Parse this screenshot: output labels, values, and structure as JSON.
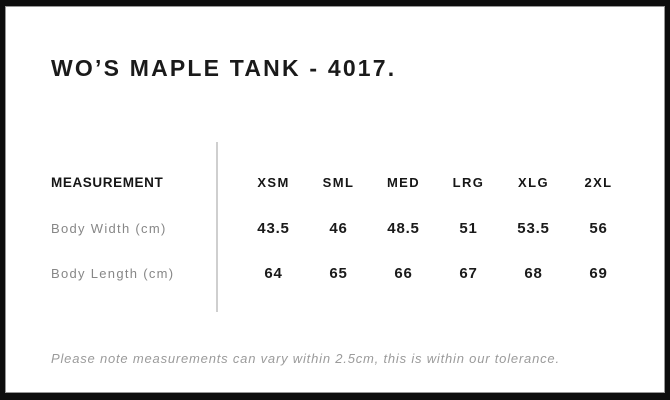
{
  "page": {
    "title": "WO’S MAPLE TANK - 4017.",
    "note": "Please note measurements can vary within 2.5cm, this is within our tolerance."
  },
  "size_chart": {
    "type": "table",
    "measurement_header": "MEASUREMENT",
    "size_headers": [
      "XSM",
      "SML",
      "MED",
      "LRG",
      "XLG",
      "2XL"
    ],
    "rows": [
      {
        "label": "Body Width (cm)",
        "values": [
          "43.5",
          "46",
          "48.5",
          "51",
          "53.5",
          "56"
        ]
      },
      {
        "label": "Body Length (cm)",
        "values": [
          "64",
          "65",
          "66",
          "67",
          "68",
          "69"
        ]
      }
    ]
  },
  "colors": {
    "frame": "#0d0d0d",
    "keyline": "#979797",
    "heading_text": "#1a1a1a",
    "label_text": "#878787",
    "value_text": "#1a1a1a",
    "note_text": "#9b9b9b",
    "divider": "#cfcfcf",
    "background": "#ffffff"
  }
}
